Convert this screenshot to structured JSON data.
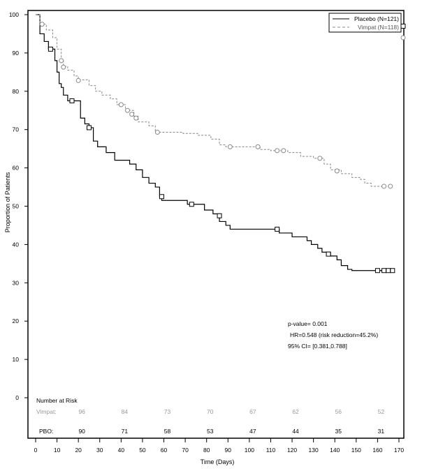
{
  "chart_data": {
    "type": "line",
    "subtype": "kaplan-meier",
    "title": "",
    "xlabel": "Time (Days)",
    "ylabel": "Proportion of Patients",
    "xlim": [
      0,
      170
    ],
    "ylim": [
      0,
      100
    ],
    "xticks": [
      0,
      10,
      20,
      30,
      40,
      50,
      60,
      70,
      80,
      90,
      100,
      110,
      120,
      130,
      140,
      150,
      160,
      170
    ],
    "yticks": [
      0,
      10,
      20,
      30,
      40,
      50,
      60,
      70,
      80,
      90,
      100
    ],
    "legend_position": "top-right",
    "series": [
      {
        "name": "Placebo (N=121)",
        "style": "solid",
        "color": "#000000",
        "censor_marker": "square",
        "steps": [
          [
            0,
            100
          ],
          [
            2,
            95
          ],
          [
            4,
            93
          ],
          [
            6,
            91
          ],
          [
            9,
            88
          ],
          [
            10,
            85
          ],
          [
            11,
            82
          ],
          [
            12,
            81
          ],
          [
            13,
            79
          ],
          [
            15,
            77.5
          ],
          [
            21,
            73
          ],
          [
            23,
            71.5
          ],
          [
            25,
            70.5
          ],
          [
            27,
            67
          ],
          [
            29,
            65.5
          ],
          [
            33,
            64
          ],
          [
            37,
            62
          ],
          [
            44,
            61
          ],
          [
            47,
            59.5
          ],
          [
            50,
            57.5
          ],
          [
            53,
            56
          ],
          [
            56,
            55
          ],
          [
            58,
            52.5
          ],
          [
            59,
            51.5
          ],
          [
            71,
            50.5
          ],
          [
            79,
            49
          ],
          [
            83,
            48
          ],
          [
            86,
            46
          ],
          [
            89,
            45
          ],
          [
            91,
            44
          ],
          [
            114,
            43
          ],
          [
            120,
            42
          ],
          [
            127,
            41
          ],
          [
            129,
            40
          ],
          [
            132,
            39
          ],
          [
            134,
            38
          ],
          [
            138,
            37
          ],
          [
            141,
            36
          ],
          [
            143,
            34.5
          ],
          [
            146,
            33.5
          ],
          [
            148,
            33.2
          ],
          [
            168,
            33.2
          ]
        ],
        "censored": [
          [
            7,
            91
          ],
          [
            17,
            77.5
          ],
          [
            25,
            70.5
          ],
          [
            59,
            52.5
          ],
          [
            73,
            50.5
          ],
          [
            86,
            47.5
          ],
          [
            113,
            44
          ],
          [
            137,
            37.5
          ],
          [
            160,
            33.2
          ],
          [
            163,
            33.2
          ],
          [
            165,
            33.2
          ],
          [
            167,
            33.2
          ],
          [
            172,
            97
          ]
        ]
      },
      {
        "name": "Vimpat (N=118)",
        "style": "dashed",
        "color": "#888888",
        "censor_marker": "circle",
        "steps": [
          [
            0,
            100
          ],
          [
            2,
            97.5
          ],
          [
            5,
            96
          ],
          [
            8,
            94
          ],
          [
            10,
            91
          ],
          [
            12,
            88
          ],
          [
            13,
            86.5
          ],
          [
            15,
            85.5
          ],
          [
            18,
            84
          ],
          [
            20,
            83
          ],
          [
            25,
            81.5
          ],
          [
            28,
            80
          ],
          [
            31,
            79
          ],
          [
            35,
            78
          ],
          [
            38,
            76.5
          ],
          [
            42,
            75
          ],
          [
            46,
            73.5
          ],
          [
            48,
            72
          ],
          [
            53,
            71
          ],
          [
            56,
            69.3
          ],
          [
            69,
            69
          ],
          [
            76,
            68.5
          ],
          [
            82,
            67.5
          ],
          [
            86,
            66
          ],
          [
            89,
            65.5
          ],
          [
            105,
            64.8
          ],
          [
            110,
            64.5
          ],
          [
            118,
            64
          ],
          [
            124,
            63
          ],
          [
            130,
            62.5
          ],
          [
            135,
            61
          ],
          [
            138,
            59.5
          ],
          [
            143,
            58.5
          ],
          [
            148,
            57.5
          ],
          [
            152,
            57
          ],
          [
            154,
            56
          ],
          [
            157,
            55.2
          ],
          [
            167,
            55.2
          ]
        ],
        "censored": [
          [
            3,
            97.5
          ],
          [
            12,
            88
          ],
          [
            13,
            86.3
          ],
          [
            20,
            82.8
          ],
          [
            40,
            76.5
          ],
          [
            43,
            75
          ],
          [
            45,
            74
          ],
          [
            47,
            73
          ],
          [
            57,
            69.3
          ],
          [
            91,
            65.5
          ],
          [
            104,
            65.5
          ],
          [
            113,
            64.5
          ],
          [
            116,
            64.5
          ],
          [
            133,
            62.5
          ],
          [
            141,
            59.2
          ],
          [
            163,
            55.2
          ],
          [
            166,
            55.2
          ],
          [
            172,
            94
          ]
        ]
      }
    ],
    "annotations": {
      "p_value": "p-value= 0.001",
      "hr": "HR=0.548 (risk reduction=45.2%)",
      "ci": "95% CI= [0.381,0.788]"
    },
    "risk_table": {
      "title": "Number at Risk",
      "times": [
        20,
        40,
        60,
        80,
        100,
        120,
        140,
        160
      ],
      "rows": [
        {
          "label": "Vimpat:",
          "values": [
            "96",
            "84",
            "73",
            "70",
            "67",
            "62",
            "56",
            "52"
          ],
          "color": "#888888"
        },
        {
          "label": "PBO:",
          "values": [
            "90",
            "71",
            "58",
            "53",
            "47",
            "44",
            "35",
            "31"
          ],
          "color": "#000000"
        }
      ]
    }
  }
}
